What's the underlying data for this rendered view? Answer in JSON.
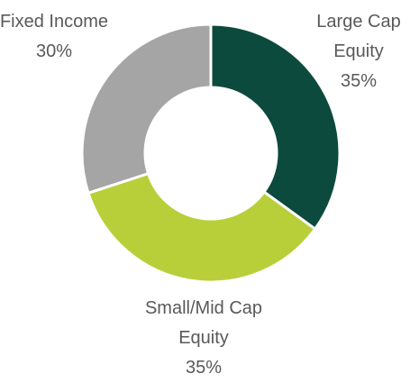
{
  "chart_data": {
    "type": "donut",
    "categories": [
      "Large Cap Equity",
      "Small/Mid Cap Equity",
      "Fixed Income"
    ],
    "values": [
      35,
      35,
      30
    ],
    "value_labels": [
      "35%",
      "35%",
      "30%"
    ],
    "colors": [
      "#0b4a3c",
      "#b8cf3a",
      "#a5a5a5"
    ]
  }
}
